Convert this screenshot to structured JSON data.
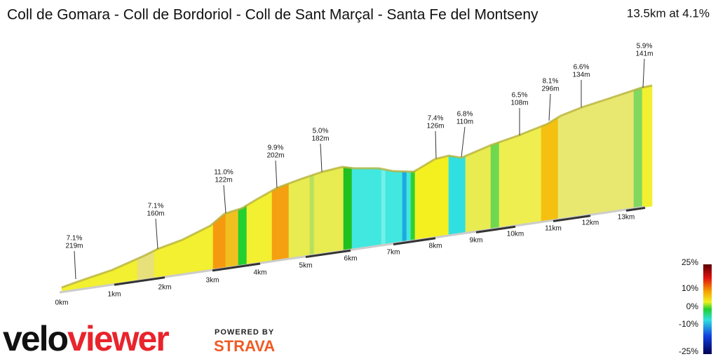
{
  "title": "Coll de Gomara - Coll de Bordoriol - Coll de Sant Marçal - Santa Fe del Montseny",
  "summary": "13.5km at 4.1%",
  "annotations": [
    {
      "grade": "7.1%",
      "length": "219m"
    },
    {
      "grade": "7.1%",
      "length": "160m"
    },
    {
      "grade": "11.0%",
      "length": "122m"
    },
    {
      "grade": "9.9%",
      "length": "202m"
    },
    {
      "grade": "5.0%",
      "length": "182m"
    },
    {
      "grade": "7.4%",
      "length": "126m"
    },
    {
      "grade": "6.8%",
      "length": "110m"
    },
    {
      "grade": "6.5%",
      "length": "108m"
    },
    {
      "grade": "8.1%",
      "length": "296m"
    },
    {
      "grade": "6.6%",
      "length": "134m"
    },
    {
      "grade": "5.9%",
      "length": "141m"
    }
  ],
  "distance_labels": [
    "0km",
    "1km",
    "2km",
    "3km",
    "4km",
    "5km",
    "6km",
    "7km",
    "8km",
    "9km",
    "10km",
    "11km",
    "12km",
    "13km"
  ],
  "legend": {
    "labels": [
      "25%",
      "10%",
      "0%",
      "-10%",
      "-25%"
    ]
  },
  "brand": {
    "logo_left": "velo",
    "logo_right": "viewer",
    "powered_by": "POWERED BY",
    "partner": "STRAVA"
  }
}
